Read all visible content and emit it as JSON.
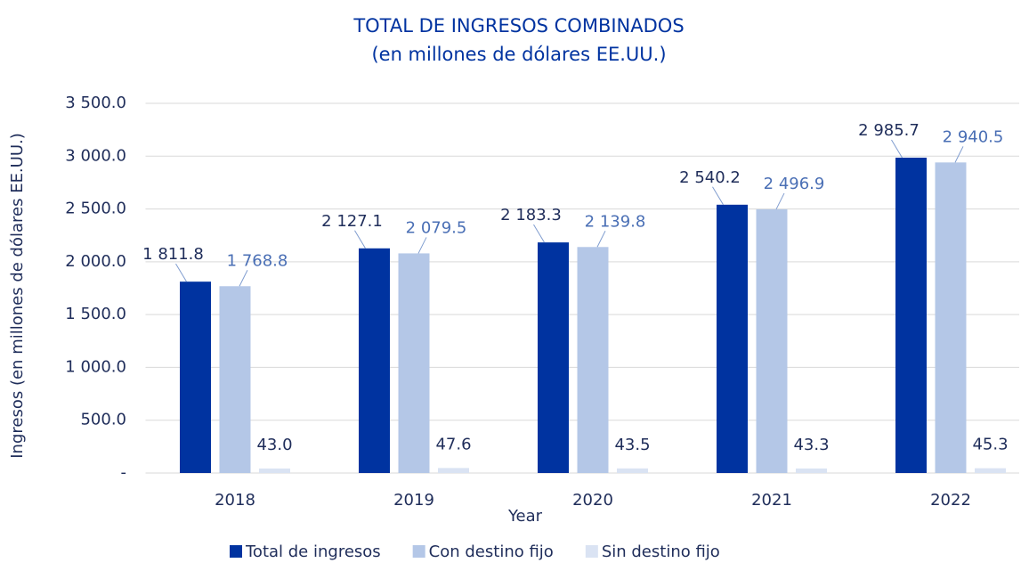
{
  "chart_data": {
    "type": "bar",
    "title": "TOTAL DE INGRESOS COMBINADOS",
    "subtitle": "(en millones de dólares EE.UU.)",
    "x_label": "Year",
    "y_label": "Ingresos (en millones de dólares EE.UU.)",
    "categories": [
      "2018",
      "2019",
      "2020",
      "2021",
      "2022"
    ],
    "series": [
      {
        "name": "Total de ingresos",
        "color": "#0033a0",
        "values": [
          1811.8,
          2127.1,
          2183.3,
          2540.2,
          2985.7
        ],
        "value_labels": [
          "1 811.8",
          "2 127.1",
          "2 183.3",
          "2 540.2",
          "2 985.7"
        ]
      },
      {
        "name": "Con destino fijo",
        "color": "#b4c7e7",
        "values": [
          1768.8,
          2079.5,
          2139.8,
          2496.9,
          2940.5
        ],
        "value_labels": [
          "1 768.8",
          "2 079.5",
          "2 139.8",
          "2 496.9",
          "2 940.5"
        ]
      },
      {
        "name": "Sin destino fijo",
        "color": "#dae3f3",
        "values": [
          43.0,
          47.6,
          43.5,
          43.3,
          45.3
        ],
        "value_labels": [
          "43.0",
          "47.6",
          "43.5",
          "43.3",
          "45.3"
        ]
      }
    ],
    "ylim": [
      0,
      3500
    ],
    "yticks": [
      {
        "value": 0,
        "label": "-"
      },
      {
        "value": 500,
        "label": "500.0"
      },
      {
        "value": 1000,
        "label": "1 000.0"
      },
      {
        "value": 1500,
        "label": "1 500.0"
      },
      {
        "value": 2000,
        "label": "2 000.0"
      },
      {
        "value": 2500,
        "label": "2 500.0"
      },
      {
        "value": 3000,
        "label": "3 000.0"
      },
      {
        "value": 3500,
        "label": "3 500.0"
      }
    ],
    "grid": true,
    "legend": "bottom"
  }
}
